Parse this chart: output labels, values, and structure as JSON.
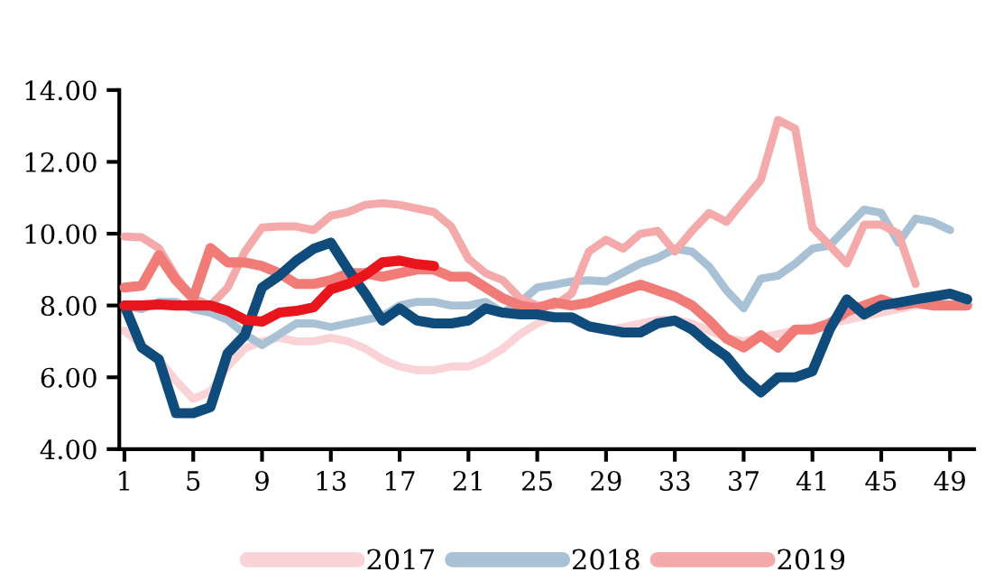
{
  "chart_data": {
    "type": "line",
    "x": [
      1,
      2,
      3,
      4,
      5,
      6,
      7,
      8,
      9,
      10,
      11,
      12,
      13,
      14,
      15,
      16,
      17,
      18,
      19,
      20,
      21,
      22,
      23,
      24,
      25,
      26,
      27,
      28,
      29,
      30,
      31,
      32,
      33,
      34,
      35,
      36,
      37,
      38,
      39,
      40,
      41,
      42,
      43,
      44,
      45,
      46,
      47,
      48,
      49,
      50
    ],
    "series": [
      {
        "name": "2017",
        "color": "#f9d3d6",
        "values": [
          7.3,
          6.9,
          6.5,
          5.9,
          5.4,
          5.6,
          6.3,
          6.8,
          7.0,
          7.1,
          7.0,
          7.0,
          7.1,
          7.0,
          6.8,
          6.5,
          6.3,
          6.2,
          6.2,
          6.3,
          6.3,
          6.5,
          6.8,
          7.2,
          7.5,
          7.7,
          7.6,
          7.4,
          7.3,
          7.4,
          7.5,
          7.6,
          7.6,
          7.5,
          7.3,
          7.1,
          7.0,
          7.1,
          7.2,
          7.3,
          7.4,
          7.5,
          7.6,
          7.7,
          7.8,
          7.9,
          8.0,
          8.0,
          8.0,
          8.0
        ]
      },
      {
        "name": "2018",
        "color": "#a9c1d4",
        "values": [
          8.0,
          7.9,
          8.1,
          8.1,
          7.9,
          7.8,
          7.6,
          7.2,
          6.9,
          7.2,
          7.5,
          7.5,
          7.4,
          7.5,
          7.6,
          7.7,
          8.0,
          8.1,
          8.1,
          8.0,
          8.0,
          8.1,
          7.8,
          8.08,
          8.5,
          8.58,
          8.67,
          8.7,
          8.67,
          8.92,
          9.17,
          9.33,
          9.58,
          9.5,
          9.08,
          8.42,
          7.92,
          8.75,
          8.83,
          9.17,
          9.58,
          9.67,
          10.17,
          10.67,
          10.58,
          9.75,
          10.42,
          10.33,
          10.1,
          null
        ]
      },
      {
        "name": "2019",
        "color": "#f4aaaa",
        "values": [
          9.92,
          9.9,
          9.6,
          8.8,
          8.2,
          8.0,
          8.5,
          9.5,
          10.17,
          10.2,
          10.2,
          10.1,
          10.5,
          10.6,
          10.8,
          10.85,
          10.8,
          10.7,
          10.6,
          10.2,
          9.3,
          8.9,
          8.7,
          8.2,
          8.0,
          8.0,
          8.33,
          9.5,
          9.83,
          9.58,
          10.0,
          10.08,
          9.5,
          10.08,
          10.58,
          10.33,
          10.92,
          11.5,
          13.17,
          12.92,
          10.17,
          9.67,
          9.17,
          10.25,
          10.25,
          10.0,
          8.6,
          null,
          null,
          null
        ]
      },
      {
        "color": "#f07b77",
        "values": [
          8.5,
          8.55,
          9.4,
          8.7,
          8.2,
          9.6,
          9.2,
          9.2,
          9.1,
          8.9,
          8.6,
          8.6,
          8.7,
          8.9,
          8.9,
          8.8,
          8.9,
          9.0,
          9.0,
          8.8,
          8.8,
          8.5,
          8.2,
          8.0,
          7.92,
          8.08,
          8.0,
          8.08,
          8.25,
          8.42,
          8.58,
          8.42,
          8.25,
          8.0,
          7.58,
          7.08,
          6.83,
          7.17,
          6.83,
          7.33,
          7.33,
          7.5,
          7.83,
          8.0,
          8.17,
          8.0,
          8.08,
          8.0,
          8.0,
          8.0
        ]
      },
      {
        "color": "#0f4c7c",
        "values": [
          8.0,
          6.83,
          6.5,
          5.0,
          5.0,
          5.17,
          6.67,
          7.17,
          8.5,
          8.83,
          9.25,
          9.58,
          9.75,
          9.0,
          8.33,
          7.58,
          7.92,
          7.58,
          7.5,
          7.5,
          7.58,
          7.92,
          7.8,
          7.75,
          7.75,
          7.67,
          7.67,
          7.42,
          7.33,
          7.25,
          7.25,
          7.5,
          7.58,
          7.33,
          6.92,
          6.58,
          6.0,
          5.58,
          6.0,
          6.0,
          6.17,
          7.33,
          8.17,
          7.75,
          8.0,
          8.08,
          8.17,
          8.25,
          8.33,
          8.17
        ]
      },
      {
        "color": "#e8161c",
        "values": [
          8.0,
          8.0,
          8.03,
          8.0,
          8.0,
          8.0,
          7.85,
          7.6,
          7.55,
          7.8,
          7.85,
          7.95,
          8.45,
          8.6,
          8.85,
          9.2,
          9.25,
          9.15,
          9.1,
          null,
          null,
          null,
          null,
          null,
          null,
          null,
          null,
          null,
          null,
          null,
          null,
          null,
          null,
          null,
          null,
          null,
          null,
          null,
          null,
          null,
          null,
          null,
          null,
          null,
          null,
          null,
          null,
          null,
          null,
          null
        ]
      }
    ],
    "xlim": [
      0.7,
      50.4
    ],
    "xticks": [
      1,
      5,
      9,
      13,
      17,
      21,
      25,
      29,
      33,
      37,
      41,
      45,
      49
    ],
    "ylim": [
      4,
      14
    ],
    "yticks": [
      {
        "value": 4,
        "label": "4.00"
      },
      {
        "value": 6,
        "label": "6.00"
      },
      {
        "value": 8,
        "label": "8.00"
      },
      {
        "value": 10,
        "label": "10.00"
      },
      {
        "value": 12,
        "label": "12.00"
      },
      {
        "value": 14,
        "label": "14.00"
      }
    ],
    "legend": "bottom",
    "grid": false,
    "marker": "none",
    "line_style": "solid"
  }
}
